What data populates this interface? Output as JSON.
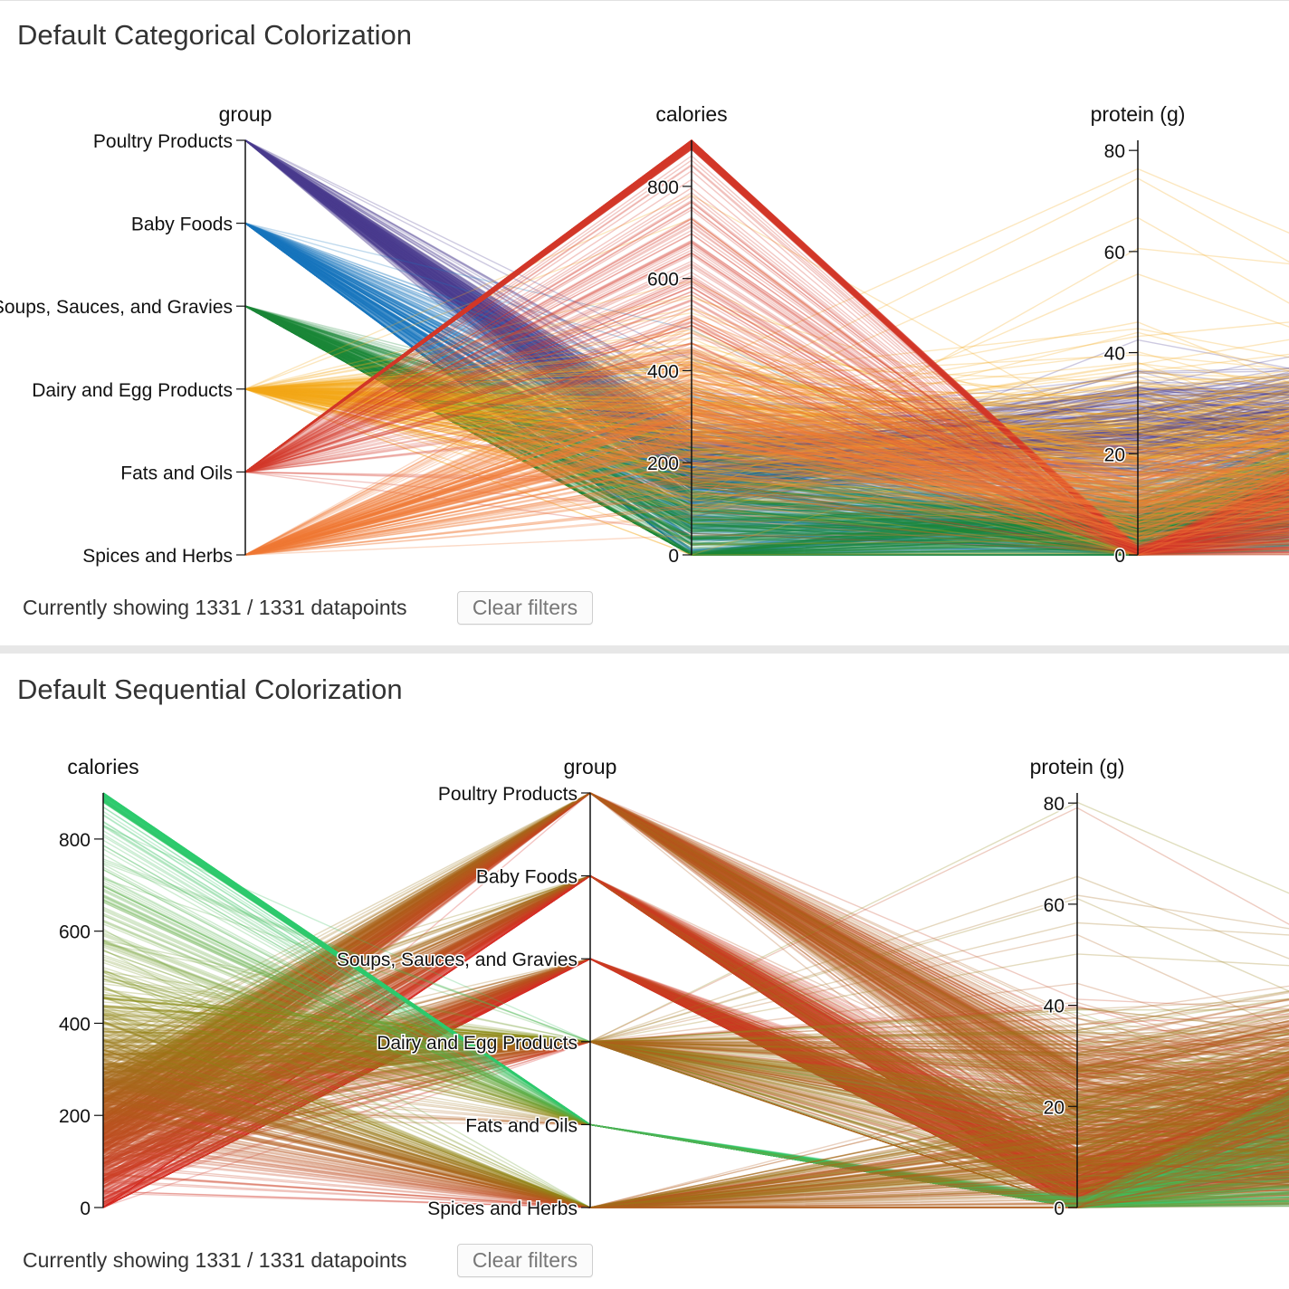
{
  "charts": [
    {
      "title": "Default Categorical Colorization",
      "status": "Currently showing 1331 / 1331 datapoints",
      "clear_label": "Clear filters"
    },
    {
      "title": "Default Sequential Colorization",
      "status": "Currently showing 1331 / 1331 datapoints",
      "clear_label": "Clear filters"
    }
  ],
  "chart_data": [
    {
      "type": "parallel-coordinates",
      "title": "Default Categorical Colorization",
      "total_points": 1331,
      "shown_points": 1331,
      "color_by": "group",
      "colors": {
        "Poultry Products": "#4c3d8f",
        "Baby Foods": "#1878bd",
        "Soups, Sauces, and Gravies": "#1b8a3a",
        "Dairy and Egg Products": "#f6a81a",
        "Fats and Oils": "#d43a2a",
        "Spices and Herbs": "#f27a36"
      },
      "dimensions": [
        {
          "name": "group",
          "type": "categorical",
          "categories": [
            "Poultry Products",
            "Baby Foods",
            "Soups, Sauces, and Gravies",
            "Dairy and Egg Products",
            "Fats and Oils",
            "Spices and Herbs"
          ]
        },
        {
          "name": "calories",
          "type": "numeric",
          "domain": [
            0,
            900
          ],
          "ticks": [
            0,
            200,
            400,
            600,
            800
          ]
        },
        {
          "name": "protein (g)",
          "type": "numeric",
          "domain": [
            0,
            82
          ],
          "ticks": [
            0,
            20,
            40,
            60,
            80
          ]
        }
      ]
    },
    {
      "type": "parallel-coordinates",
      "title": "Default Sequential Colorization",
      "total_points": 1331,
      "shown_points": 1331,
      "color_by": "calories",
      "color_scale": {
        "low": "#d73027",
        "mid": "#8c8c14",
        "high": "#2ecc71"
      },
      "dimensions": [
        {
          "name": "calories",
          "type": "numeric",
          "domain": [
            0,
            900
          ],
          "ticks": [
            0,
            200,
            400,
            600,
            800
          ]
        },
        {
          "name": "group",
          "type": "categorical",
          "categories": [
            "Poultry Products",
            "Baby Foods",
            "Soups, Sauces, and Gravies",
            "Dairy and Egg Products",
            "Fats and Oils",
            "Spices and Herbs"
          ]
        },
        {
          "name": "protein (g)",
          "type": "numeric",
          "domain": [
            0,
            82
          ],
          "ticks": [
            0,
            20,
            40,
            60,
            80
          ]
        }
      ]
    }
  ]
}
